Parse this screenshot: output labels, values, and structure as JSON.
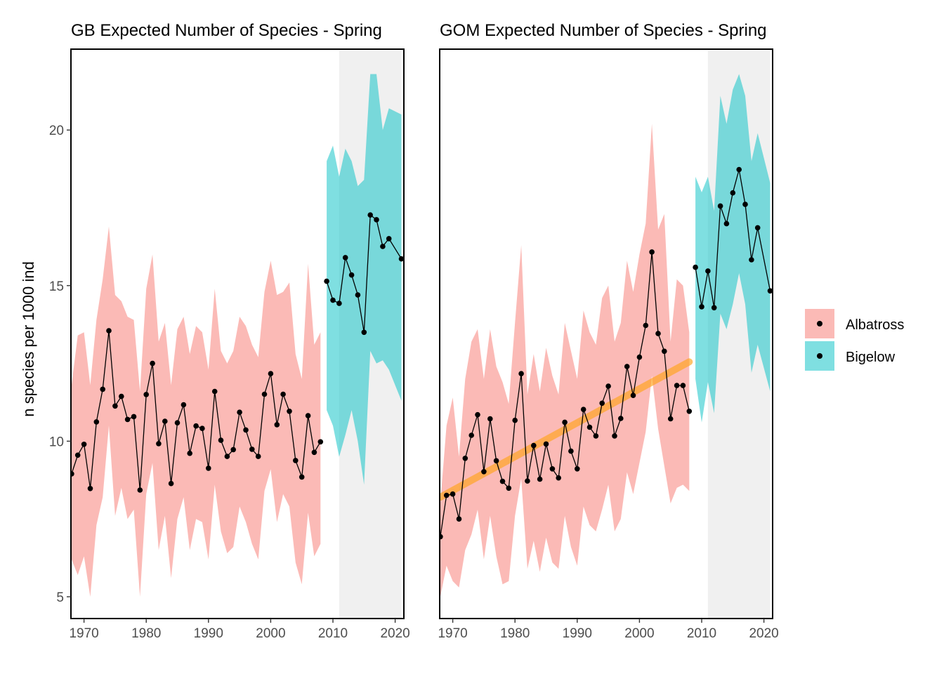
{
  "ylabel": "n species per 1000 ind",
  "legend": {
    "placement": "right",
    "items": [
      {
        "name": "Albatross",
        "color": "#F8766D"
      },
      {
        "name": "Bigelow",
        "color": "#00BFC4"
      }
    ]
  },
  "style": {
    "ribbon_opacity": 0.5,
    "line_color": "#000000",
    "trend_color": "#FFA31A",
    "shade_color": "#F0F0F0"
  },
  "chart_data": [
    {
      "type": "line",
      "title": "GB Expected Number of Species - Spring",
      "xlim": [
        1967.9,
        2021.4
      ],
      "ylim": [
        4.3,
        22.6
      ],
      "x_ticks": [
        1970,
        1980,
        1990,
        2000,
        2010,
        2020
      ],
      "y_ticks": [
        5,
        10,
        15,
        20
      ],
      "grid": false,
      "shaded_x": [
        2011,
        2021
      ],
      "series": [
        {
          "name": "Albatross",
          "x": [
            1968,
            1969,
            1970,
            1971,
            1972,
            1973,
            1974,
            1975,
            1976,
            1977,
            1978,
            1979,
            1980,
            1981,
            1982,
            1983,
            1984,
            1985,
            1986,
            1987,
            1988,
            1989,
            1990,
            1991,
            1992,
            1993,
            1994,
            1995,
            1996,
            1997,
            1998,
            1999,
            2000,
            2001,
            2002,
            2003,
            2004,
            2005,
            2006,
            2007,
            2008
          ],
          "y": [
            8.95,
            9.55,
            9.9,
            8.48,
            10.62,
            11.67,
            13.55,
            11.13,
            11.44,
            10.7,
            10.79,
            8.43,
            11.5,
            12.5,
            9.92,
            10.64,
            8.64,
            10.59,
            11.17,
            9.61,
            10.49,
            10.41,
            9.13,
            11.6,
            10.03,
            9.51,
            9.73,
            10.93,
            10.36,
            9.74,
            9.51,
            11.51,
            12.17,
            10.53,
            11.51,
            10.96,
            9.38,
            8.85,
            10.82,
            9.64,
            9.98
          ],
          "lower": [
            6.2,
            5.7,
            6.3,
            5.0,
            7.3,
            8.2,
            10.5,
            7.6,
            8.5,
            7.5,
            7.8,
            5.0,
            8.3,
            9.3,
            6.5,
            7.6,
            5.6,
            7.5,
            8.2,
            6.5,
            7.5,
            7.4,
            6.2,
            8.6,
            7.1,
            6.4,
            6.6,
            7.9,
            7.4,
            6.7,
            6.2,
            8.4,
            9.1,
            7.4,
            8.3,
            7.9,
            6.1,
            5.4,
            7.7,
            6.3,
            6.7
          ],
          "upper": [
            11.8,
            13.4,
            13.5,
            11.8,
            13.9,
            15.2,
            16.9,
            14.7,
            14.5,
            14.0,
            13.9,
            11.6,
            14.9,
            16.0,
            13.2,
            13.8,
            11.8,
            13.6,
            14.0,
            12.8,
            13.7,
            13.5,
            12.3,
            14.9,
            12.9,
            12.5,
            12.9,
            14.0,
            13.7,
            13.1,
            12.7,
            14.8,
            15.8,
            14.7,
            14.8,
            15.1,
            12.8,
            12.0,
            15.7,
            13.1,
            13.5
          ]
        },
        {
          "name": "Bigelow",
          "x": [
            2009,
            2010,
            2011,
            2012,
            2013,
            2014,
            2015,
            2016,
            2017,
            2018,
            2019,
            2021
          ],
          "y": [
            15.14,
            14.53,
            14.43,
            15.9,
            15.34,
            14.7,
            13.5,
            17.27,
            17.12,
            16.26,
            16.51,
            15.86
          ],
          "lower": [
            11.0,
            10.5,
            9.5,
            10.2,
            11.0,
            10.0,
            8.6,
            12.9,
            12.5,
            12.6,
            12.3,
            11.3
          ],
          "upper": [
            19.0,
            19.5,
            18.5,
            19.4,
            19.0,
            18.2,
            18.4,
            21.8,
            21.8,
            20.0,
            20.7,
            20.5
          ]
        }
      ]
    },
    {
      "type": "line",
      "title": "GOM Expected Number of Species - Spring",
      "xlim": [
        1967.9,
        2021.4
      ],
      "ylim": [
        4.3,
        22.6
      ],
      "x_ticks": [
        1970,
        1980,
        1990,
        2000,
        2010,
        2020
      ],
      "y_ticks": [
        5,
        10,
        15,
        20
      ],
      "grid": false,
      "shaded_x": [
        2011,
        2021
      ],
      "trend": {
        "x": [
          1968,
          2008
        ],
        "y": [
          8.2,
          12.55
        ]
      },
      "series": [
        {
          "name": "Albatross",
          "x": [
            1968,
            1969,
            1970,
            1971,
            1972,
            1973,
            1974,
            1975,
            1976,
            1977,
            1978,
            1979,
            1980,
            1981,
            1982,
            1983,
            1984,
            1985,
            1986,
            1987,
            1988,
            1989,
            1990,
            1991,
            1992,
            1993,
            1994,
            1995,
            1996,
            1997,
            1998,
            1999,
            2000,
            2001,
            2002,
            2003,
            2004,
            2005,
            2006,
            2007,
            2008
          ],
          "y": [
            6.93,
            8.26,
            8.3,
            7.5,
            9.45,
            10.19,
            10.85,
            9.02,
            10.72,
            9.37,
            8.71,
            8.49,
            10.67,
            12.17,
            8.72,
            9.86,
            8.78,
            9.91,
            9.11,
            8.82,
            10.61,
            9.68,
            9.11,
            11.02,
            10.45,
            10.17,
            11.22,
            11.77,
            10.17,
            10.73,
            12.4,
            11.47,
            12.7,
            13.72,
            16.08,
            13.46,
            12.89,
            10.72,
            11.79,
            11.79,
            10.96
          ],
          "lower": [
            5.0,
            6.0,
            5.5,
            5.3,
            6.5,
            7.0,
            7.8,
            6.2,
            7.6,
            6.3,
            5.4,
            5.5,
            7.6,
            8.8,
            5.9,
            6.8,
            5.8,
            6.9,
            6.1,
            5.9,
            7.6,
            6.6,
            6.0,
            7.9,
            7.3,
            7.1,
            7.8,
            8.6,
            7.1,
            7.5,
            9.0,
            8.3,
            9.3,
            10.3,
            12.1,
            10.4,
            9.2,
            8.0,
            8.5,
            8.6,
            8.4
          ],
          "upper": [
            8.0,
            10.5,
            11.4,
            9.5,
            12.0,
            13.2,
            13.6,
            12.0,
            13.6,
            12.4,
            11.9,
            11.2,
            13.8,
            16.3,
            11.5,
            12.8,
            11.6,
            13.0,
            12.1,
            11.5,
            13.8,
            12.9,
            12.0,
            14.2,
            13.5,
            13.1,
            14.6,
            15.0,
            13.2,
            13.8,
            15.8,
            14.8,
            16.0,
            17.0,
            20.2,
            16.8,
            17.3,
            13.2,
            15.2,
            15.0,
            13.5
          ]
        },
        {
          "name": "Bigelow",
          "x": [
            2009,
            2010,
            2011,
            2012,
            2013,
            2014,
            2015,
            2016,
            2017,
            2018,
            2019,
            2021
          ],
          "y": [
            15.59,
            14.32,
            15.47,
            14.29,
            17.56,
            16.99,
            17.98,
            18.73,
            17.61,
            15.83,
            16.86,
            14.83
          ],
          "lower": [
            12.0,
            10.6,
            11.9,
            10.9,
            14.1,
            13.6,
            14.4,
            15.4,
            14.4,
            12.2,
            13.1,
            11.6
          ],
          "upper": [
            18.5,
            18.0,
            18.5,
            17.4,
            21.1,
            20.2,
            21.3,
            21.8,
            21.1,
            19.0,
            19.9,
            18.3
          ]
        }
      ]
    }
  ]
}
